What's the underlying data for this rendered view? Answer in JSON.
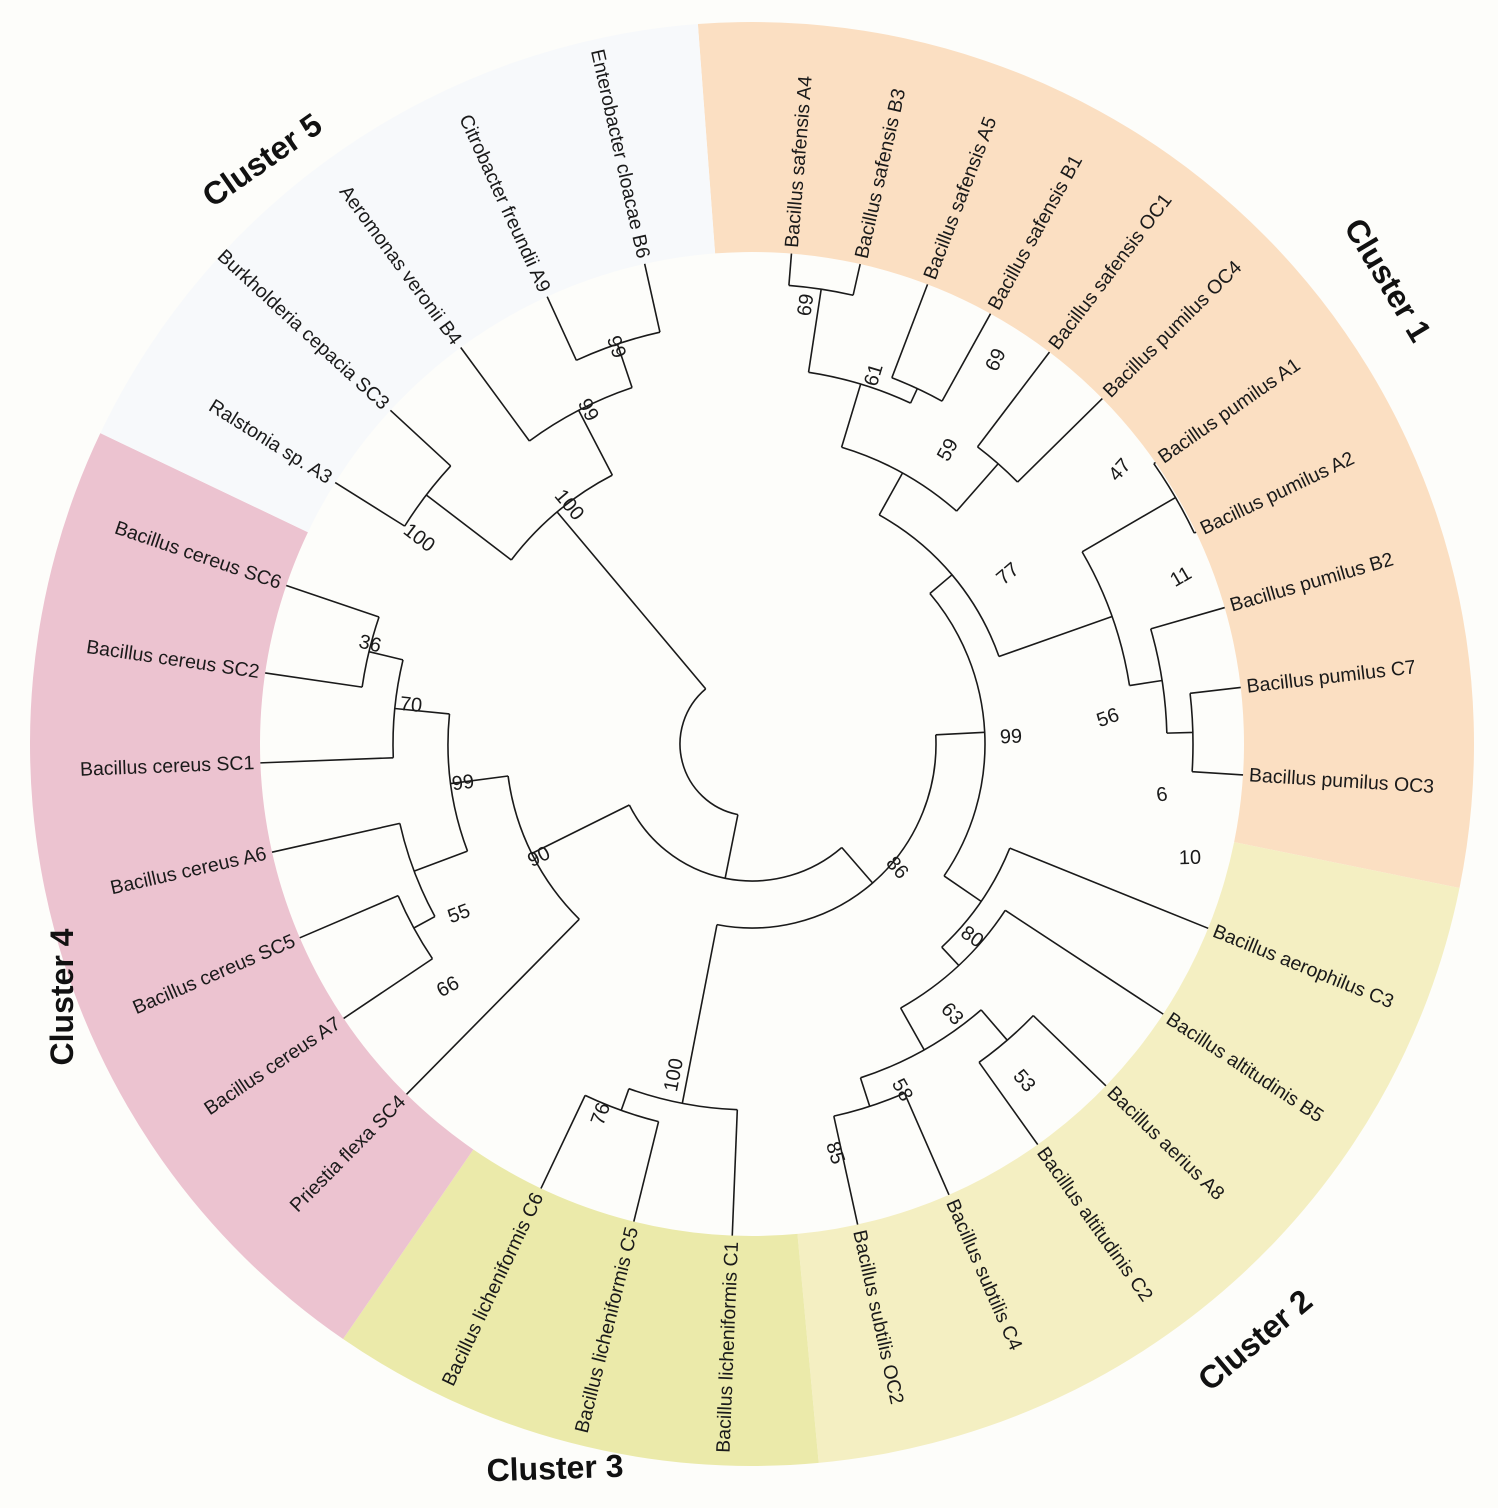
{
  "clusters": [
    {
      "id": "c1",
      "label": "Cluster 1",
      "color": "#fbdfc2"
    },
    {
      "id": "c2",
      "label": "Cluster 2",
      "color": "#f4efc2"
    },
    {
      "id": "c3",
      "label": "Cluster 3",
      "color": "#ebeaaa"
    },
    {
      "id": "c4",
      "label": "Cluster 4",
      "color": "#ecc3d0"
    },
    {
      "id": "c5",
      "label": "Cluster 5",
      "color": "#f7f9fb"
    }
  ],
  "leaves": [
    {
      "id": "A4",
      "label": "Bacillus safensis A4"
    },
    {
      "id": "B3",
      "label": "Bacillus safensis B3"
    },
    {
      "id": "A5",
      "label": "Bacillus safensis A5"
    },
    {
      "id": "B1",
      "label": "Bacillus safensis B1"
    },
    {
      "id": "OC1",
      "label": "Bacillus safensis OC1"
    },
    {
      "id": "OC4",
      "label": "Bacillus pumilus OC4"
    },
    {
      "id": "A1",
      "label": "Bacillus pumilus A1"
    },
    {
      "id": "A2",
      "label": "Bacillus pumilus A2"
    },
    {
      "id": "B2",
      "label": "Bacillus pumilus B2"
    },
    {
      "id": "C7",
      "label": "Bacillus pumilus C7"
    },
    {
      "id": "OC3",
      "label": "Bacillus pumilus OC3"
    },
    {
      "id": "C3",
      "label": "Bacillus aerophilus C3"
    },
    {
      "id": "B5",
      "label": "Bacillus altitudinis B5"
    },
    {
      "id": "A8",
      "label": "Bacillus aerius A8"
    },
    {
      "id": "C2",
      "label": "Bacillus altitudinis C2"
    },
    {
      "id": "C4",
      "label": "Bacillus subtilis C4"
    },
    {
      "id": "OC2",
      "label": "Bacillus subtilis OC2"
    },
    {
      "id": "LC1",
      "label": "Bacillus licheniformis C1"
    },
    {
      "id": "LC5",
      "label": "Bacillus licheniformis C5"
    },
    {
      "id": "LC6",
      "label": "Bacillus licheniformis C6"
    },
    {
      "id": "SC4",
      "label": "Priestia flexa SC4"
    },
    {
      "id": "A7",
      "label": "Bacillus cereus A7"
    },
    {
      "id": "SC5",
      "label": "Bacillus cereus SC5"
    },
    {
      "id": "A6",
      "label": "Bacillus cereus A6"
    },
    {
      "id": "SC1",
      "label": "Bacillus cereus SC1"
    },
    {
      "id": "SC2",
      "label": "Bacillus cereus SC2"
    },
    {
      "id": "SC6",
      "label": "Bacillus cereus SC6"
    },
    {
      "id": "A3",
      "label": "Ralstonia sp. A3"
    },
    {
      "id": "SC3",
      "label": "Burkholderia cepacia SC3"
    },
    {
      "id": "B4",
      "label": "Aeromonas veronii B4"
    },
    {
      "id": "A9",
      "label": "Citrobacter freundii A9"
    },
    {
      "id": "B6",
      "label": "Enterobacter cloacae B6"
    }
  ],
  "internal_nodes": [
    {
      "id": "n1",
      "bootstrap": "69",
      "children": [
        "A4",
        "B3"
      ]
    },
    {
      "id": "n2",
      "bootstrap": "69",
      "children": [
        "A5",
        "B1"
      ]
    },
    {
      "id": "n3",
      "bootstrap": "61",
      "children": [
        "n1",
        "n2"
      ]
    },
    {
      "id": "n4",
      "bootstrap": "47",
      "children": [
        "OC1",
        "OC4"
      ]
    },
    {
      "id": "n5",
      "bootstrap": "59",
      "children": [
        "n3",
        "n4"
      ]
    },
    {
      "id": "n6",
      "bootstrap": "11",
      "children": [
        "A1",
        "A2"
      ]
    },
    {
      "id": "n7",
      "bootstrap": "10",
      "children": [
        "C7",
        "OC3"
      ]
    },
    {
      "id": "n8",
      "bootstrap": "6",
      "children": [
        "B2",
        "n7"
      ]
    },
    {
      "id": "n9",
      "bootstrap": "56",
      "children": [
        "n6",
        "n8"
      ]
    },
    {
      "id": "n10",
      "bootstrap": "77",
      "children": [
        "n5",
        "n9"
      ]
    },
    {
      "id": "n11",
      "bootstrap": "53",
      "children": [
        "A8",
        "C2"
      ]
    },
    {
      "id": "n12",
      "bootstrap": "85",
      "children": [
        "C4",
        "OC2"
      ]
    },
    {
      "id": "n13",
      "bootstrap": "58",
      "children": [
        "n11",
        "n12"
      ]
    },
    {
      "id": "n14",
      "bootstrap": "63",
      "children": [
        "B5",
        "n13"
      ]
    },
    {
      "id": "n15",
      "bootstrap": "80",
      "children": [
        "C3",
        "n14"
      ]
    },
    {
      "id": "n16",
      "bootstrap": "99",
      "children": [
        "n10",
        "n15"
      ]
    },
    {
      "id": "n17",
      "bootstrap": "76",
      "children": [
        "LC5",
        "LC6"
      ]
    },
    {
      "id": "n18",
      "bootstrap": "100",
      "children": [
        "LC1",
        "n17"
      ]
    },
    {
      "id": "n19",
      "bootstrap": "86",
      "children": [
        "n16",
        "n18"
      ]
    },
    {
      "id": "n20",
      "bootstrap": "66",
      "children": [
        "A7",
        "SC5"
      ]
    },
    {
      "id": "n21",
      "bootstrap": "55",
      "children": [
        "n20",
        "A6"
      ]
    },
    {
      "id": "n22",
      "bootstrap": "36",
      "children": [
        "SC2",
        "SC6"
      ]
    },
    {
      "id": "n23",
      "bootstrap": "70",
      "children": [
        "SC1",
        "n22"
      ]
    },
    {
      "id": "n24",
      "bootstrap": "99",
      "children": [
        "n21",
        "n23"
      ]
    },
    {
      "id": "n25",
      "bootstrap": "90",
      "children": [
        "SC4",
        "n24"
      ]
    },
    {
      "id": "n26",
      "bootstrap": "",
      "children": [
        "n19",
        "n25"
      ]
    },
    {
      "id": "n27",
      "bootstrap": "100",
      "children": [
        "A3",
        "SC3"
      ]
    },
    {
      "id": "n28",
      "bootstrap": "99",
      "children": [
        "A9",
        "B6"
      ]
    },
    {
      "id": "n29",
      "bootstrap": "99",
      "children": [
        "B4",
        "n28"
      ]
    },
    {
      "id": "n30",
      "bootstrap": "100",
      "children": [
        "n27",
        "n29"
      ]
    },
    {
      "id": "root",
      "bootstrap": "",
      "children": [
        "n26",
        "n30"
      ]
    }
  ]
}
